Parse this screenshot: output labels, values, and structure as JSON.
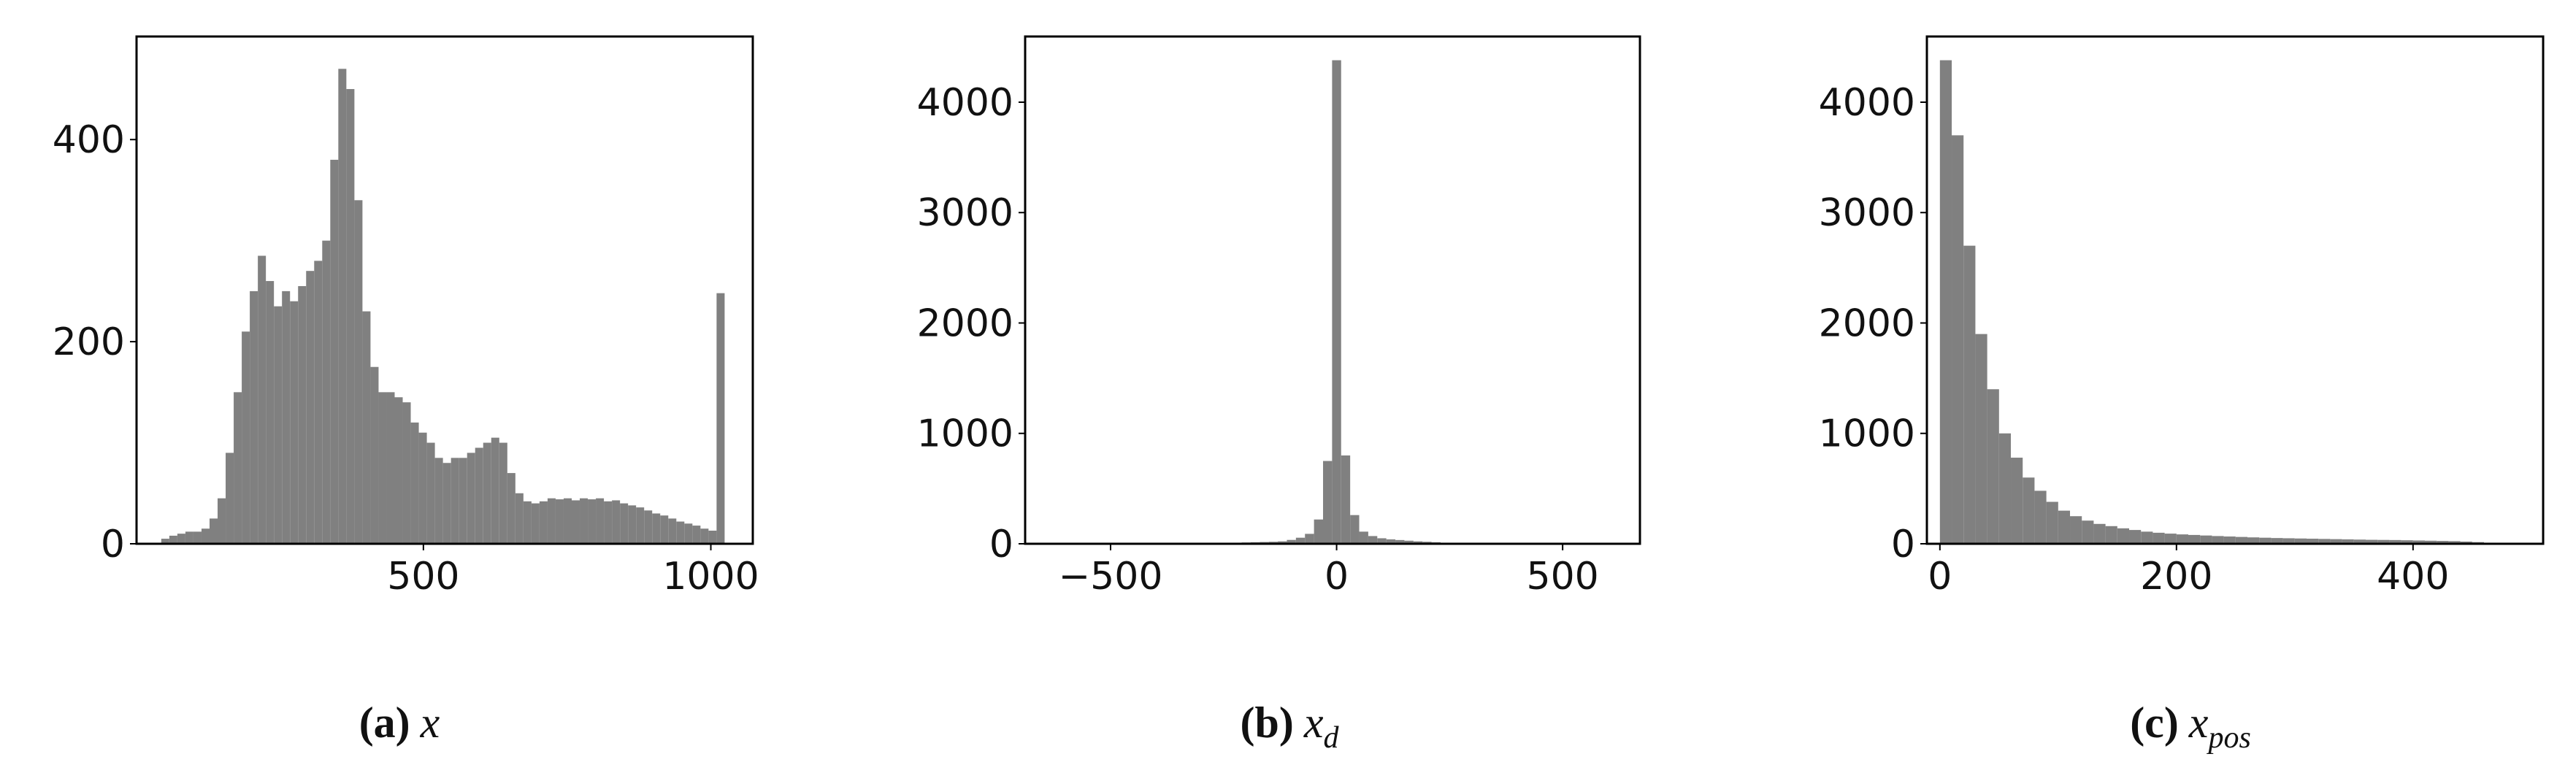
{
  "chart_data": [
    {
      "type": "histogram",
      "color": "#808080",
      "caption": {
        "label": "(a)",
        "var": "x"
      },
      "bins": [
        44,
        58,
        72,
        86,
        100,
        114,
        128,
        142,
        156,
        170,
        184,
        198,
        212,
        226,
        240,
        254,
        268,
        282,
        296,
        310,
        324,
        338,
        352,
        366,
        380,
        394,
        408,
        422,
        436,
        450,
        464,
        478,
        492,
        506,
        520,
        534,
        548,
        562,
        576,
        590,
        604,
        618,
        632,
        646,
        660,
        674,
        688,
        702,
        716,
        730,
        744,
        758,
        772,
        786,
        800,
        814,
        828,
        842,
        856,
        870,
        884,
        898,
        912,
        926,
        940,
        954,
        968,
        982,
        996,
        1010,
        1024
      ],
      "values": [
        5,
        8,
        10,
        12,
        12,
        15,
        25,
        45,
        90,
        150,
        210,
        250,
        285,
        260,
        235,
        250,
        240,
        255,
        270,
        280,
        300,
        380,
        470,
        450,
        340,
        230,
        175,
        150,
        150,
        145,
        140,
        120,
        110,
        100,
        85,
        80,
        85,
        85,
        90,
        95,
        100,
        105,
        100,
        70,
        50,
        42,
        40,
        42,
        45,
        44,
        45,
        43,
        45,
        44,
        45,
        42,
        43,
        40,
        38,
        36,
        33,
        30,
        28,
        25,
        22,
        20,
        18,
        15,
        13,
        248
      ],
      "xlim": [
        1,
        1073
      ],
      "ylim": [
        0,
        502
      ],
      "xticks": [
        500,
        1000
      ],
      "yticks": [
        0,
        200,
        400
      ]
    },
    {
      "type": "histogram",
      "color": "#808080",
      "caption": {
        "label": "(b)",
        "var": "x",
        "sub": "d"
      },
      "bins": [
        -630,
        -610,
        -590,
        -570,
        -550,
        -530,
        -510,
        -490,
        -470,
        -450,
        -430,
        -410,
        -390,
        -370,
        -350,
        -330,
        -310,
        -290,
        -270,
        -250,
        -230,
        -210,
        -190,
        -170,
        -150,
        -130,
        -110,
        -90,
        -70,
        -50,
        -30,
        -10,
        10,
        30,
        50,
        70,
        90,
        110,
        130,
        150,
        170,
        190,
        210,
        230,
        250,
        270,
        290,
        310,
        330,
        350,
        370,
        390,
        410,
        430,
        450,
        470,
        490,
        510,
        530,
        550,
        570,
        590,
        610
      ],
      "values": [
        3,
        2,
        3,
        4,
        3,
        2,
        3,
        4,
        3,
        3,
        4,
        3,
        4,
        5,
        4,
        5,
        5,
        6,
        6,
        8,
        10,
        12,
        14,
        16,
        18,
        22,
        35,
        55,
        90,
        220,
        750,
        4380,
        800,
        260,
        110,
        70,
        50,
        40,
        34,
        28,
        22,
        18,
        14,
        10,
        6,
        5,
        5,
        4,
        4,
        4,
        6,
        4,
        3,
        3,
        3,
        3,
        3,
        3,
        2,
        2,
        2,
        2
      ],
      "xlim": [
        -689,
        671
      ],
      "ylim": [
        0,
        4595
      ],
      "xticks": [
        {
          "value": -500,
          "label": "−500"
        },
        0,
        500
      ],
      "yticks": [
        0,
        1000,
        2000,
        3000,
        4000
      ]
    },
    {
      "type": "histogram",
      "color": "#808080",
      "caption": {
        "label": "(c)",
        "var": "x",
        "sub": "pos"
      },
      "bins": [
        0,
        10,
        20,
        30,
        40,
        50,
        60,
        70,
        80,
        90,
        100,
        110,
        120,
        130,
        140,
        150,
        160,
        170,
        180,
        190,
        200,
        210,
        220,
        230,
        240,
        250,
        260,
        270,
        280,
        290,
        300,
        310,
        320,
        330,
        340,
        350,
        360,
        370,
        380,
        390,
        400,
        410,
        420,
        430,
        440,
        450,
        460,
        470,
        480,
        490,
        500
      ],
      "values": [
        4380,
        3700,
        2700,
        1900,
        1400,
        1000,
        780,
        600,
        480,
        380,
        300,
        250,
        210,
        180,
        160,
        140,
        125,
        110,
        100,
        92,
        85,
        80,
        75,
        70,
        66,
        62,
        58,
        55,
        52,
        50,
        48,
        46,
        44,
        42,
        40,
        38,
        36,
        35,
        34,
        32,
        30,
        28,
        26,
        24,
        20,
        15,
        10,
        6,
        3,
        2
      ],
      "xlim": [
        -11,
        510
      ],
      "ylim": [
        0,
        4595
      ],
      "xticks": [
        0,
        200,
        400
      ],
      "yticks": [
        0,
        1000,
        2000,
        3000,
        4000
      ]
    }
  ]
}
